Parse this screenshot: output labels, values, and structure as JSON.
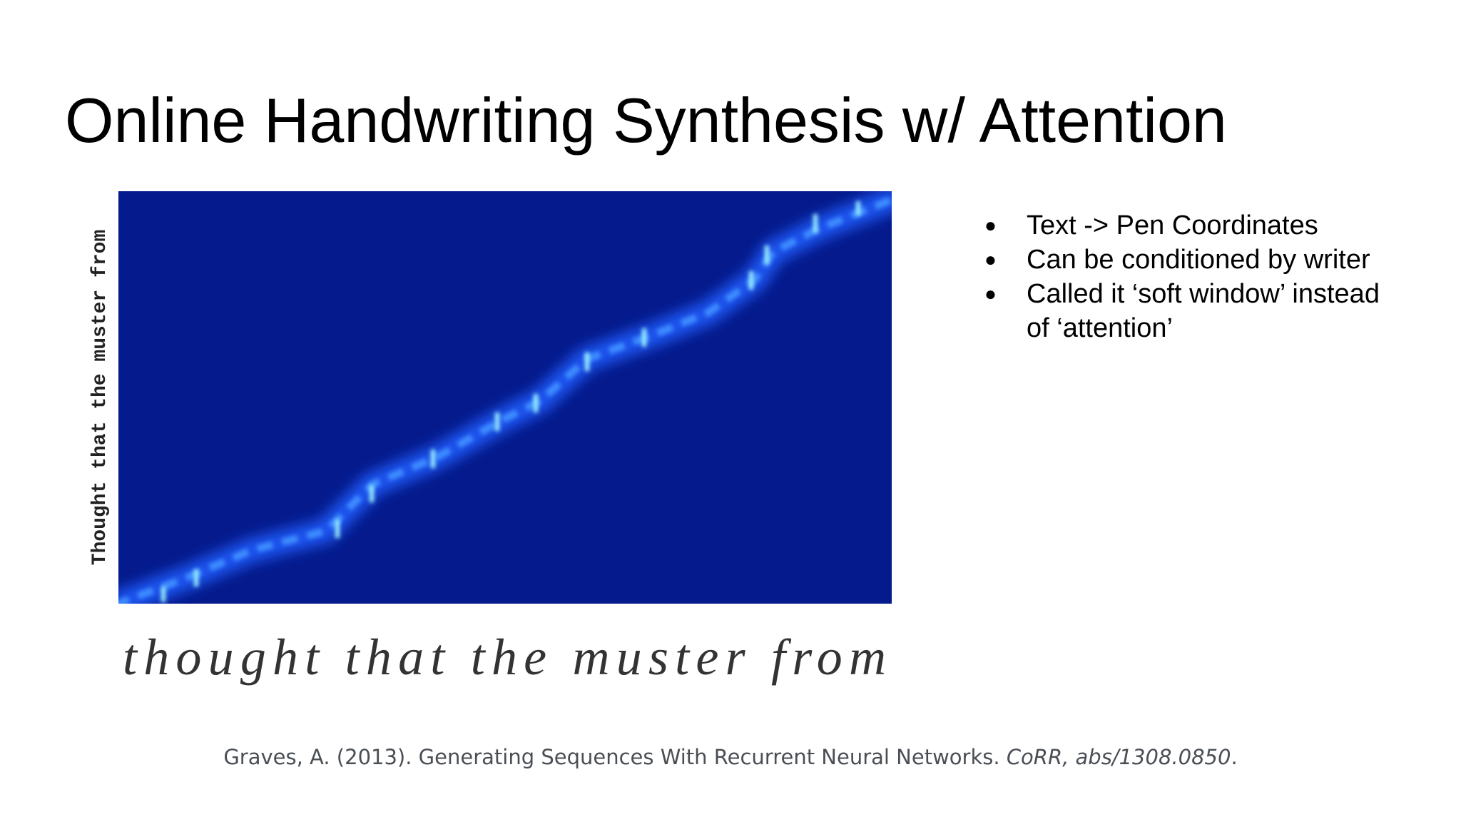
{
  "header": {
    "title": "Online Handwriting Synthesis w/ Attention"
  },
  "figure": {
    "axis_label": "Thought that the muster from",
    "handwriting": "thought that the muster from"
  },
  "bullets": [
    "Text -> Pen Coordinates",
    "Can be conditioned by writer",
    "Called it ‘soft window’ instead of ‘attention’"
  ],
  "citation": {
    "text": "Graves, A. (2013). Generating Sequences With Recurrent Neural Networks. ",
    "journal": "CoRR, abs/1308.0850",
    "end": "."
  }
}
